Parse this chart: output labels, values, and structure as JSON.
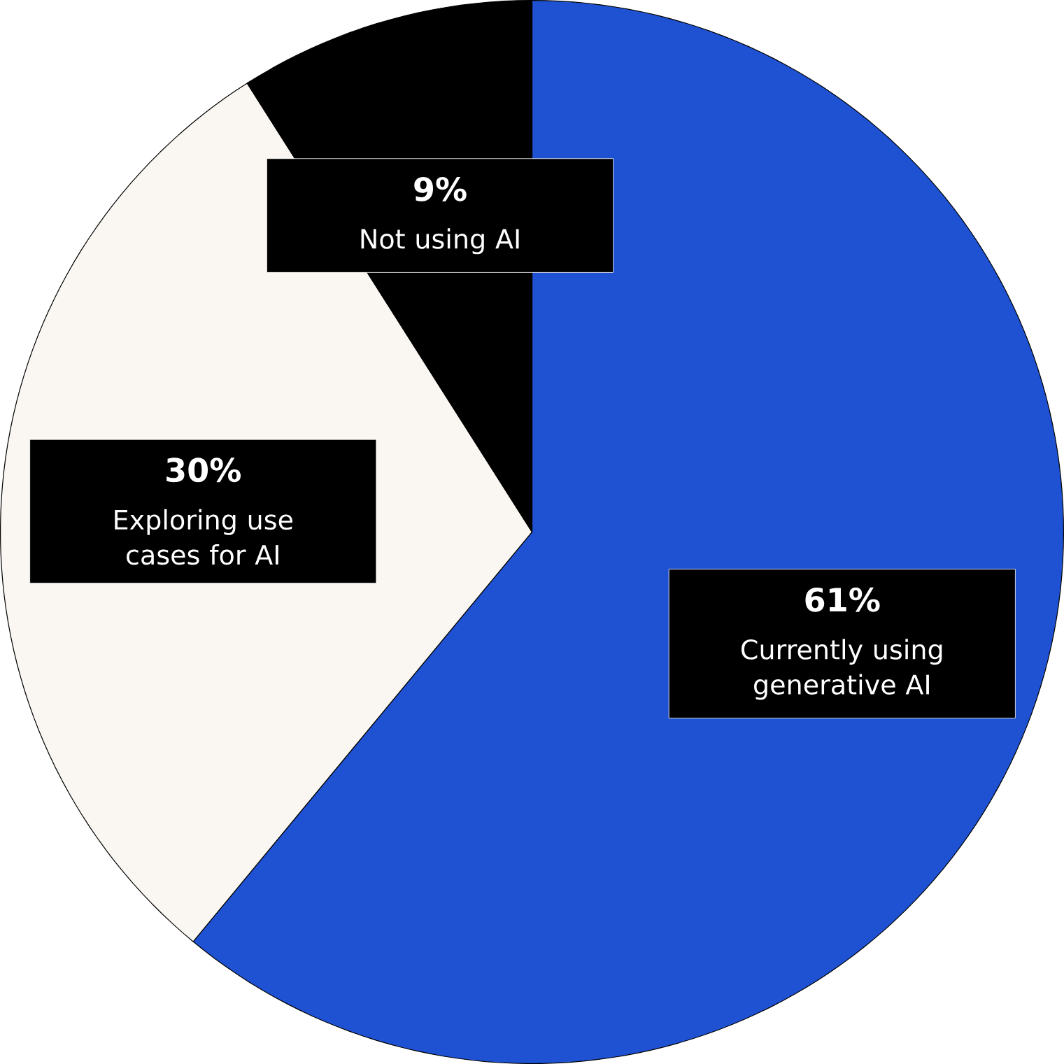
{
  "chart_data": {
    "type": "pie",
    "categories": [
      "Currently using generative AI",
      "Exploring use cases for AI",
      "Not using AI"
    ],
    "values": [
      61,
      30,
      9
    ],
    "value_labels": [
      "61%",
      "30%",
      "9%"
    ],
    "colors": [
      "#1f52d3",
      "#faf7f2",
      "#000000"
    ]
  }
}
